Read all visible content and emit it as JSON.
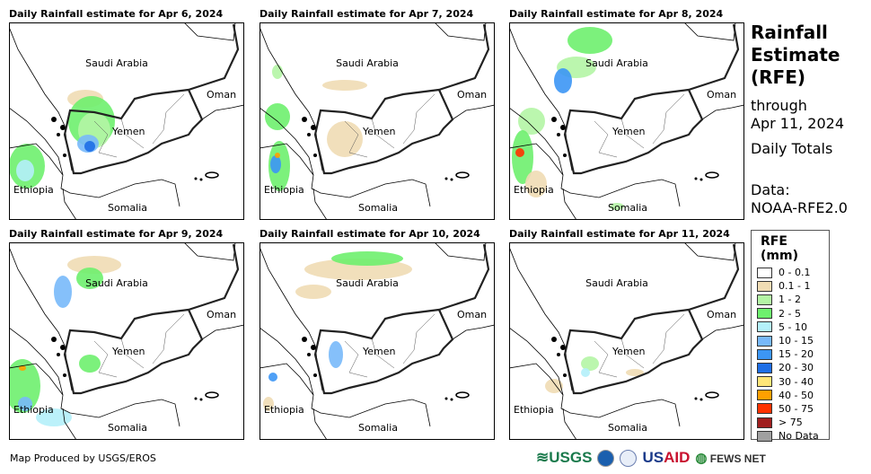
{
  "panels": [
    {
      "title": "Daily Rainfall estimate for Apr 6, 2024"
    },
    {
      "title": "Daily Rainfall estimate for Apr 7, 2024"
    },
    {
      "title": "Daily Rainfall estimate for Apr 8, 2024"
    },
    {
      "title": "Daily Rainfall estimate for Apr 9, 2024"
    },
    {
      "title": "Daily Rainfall estimate for Apr 10, 2024"
    },
    {
      "title": "Daily Rainfall estimate for Apr 11, 2024"
    }
  ],
  "map_labels": {
    "saudi": "Saudi Arabia",
    "oman": "Oman",
    "yemen": "Yemen",
    "ethiopia": "Ethiopia",
    "somalia": "Somalia"
  },
  "side": {
    "title1": "Rainfall",
    "title2": "Estimate",
    "title3": "(RFE)",
    "through": "through",
    "date": "Apr 11, 2024",
    "totals": "Daily Totals",
    "data_label": "Data:",
    "data_source": "NOAA-RFE2.0"
  },
  "legend": {
    "title": "RFE (mm)",
    "items": [
      {
        "label": "0 - 0.1",
        "color": "#ffffff"
      },
      {
        "label": "0.1 - 1",
        "color": "#f0dcb4"
      },
      {
        "label": "1 - 2",
        "color": "#b4f5a5"
      },
      {
        "label": "2 - 5",
        "color": "#6ef06e"
      },
      {
        "label": "5 - 10",
        "color": "#b4f0fa"
      },
      {
        "label": "10 - 15",
        "color": "#78b9fa"
      },
      {
        "label": "15 - 20",
        "color": "#3c96f5"
      },
      {
        "label": "20 - 30",
        "color": "#1e6ee6"
      },
      {
        "label": "30 - 40",
        "color": "#ffe678"
      },
      {
        "label": "40 - 50",
        "color": "#ffa000"
      },
      {
        "label": "50 - 75",
        "color": "#ff3200"
      },
      {
        "label": "> 75",
        "color": "#a01e1e"
      },
      {
        "label": "No Data",
        "color": "#a0a0a0"
      }
    ]
  },
  "credit": "Map Produced by USGS/EROS",
  "logos": {
    "usgs": "USGS",
    "usaid": "USAID",
    "fews": "FEWS NET"
  }
}
